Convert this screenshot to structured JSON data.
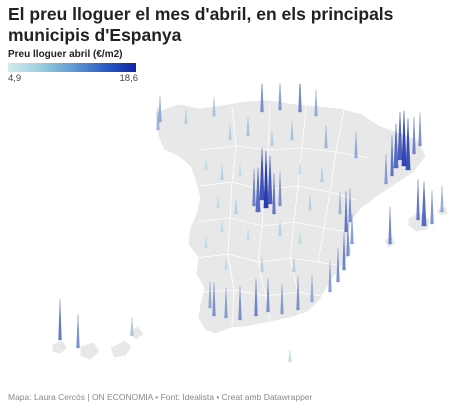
{
  "title": "El preu lloguer el mes d'abril, en els principals municipis d'Espanya",
  "legend": {
    "title": "Preu lloguer abril (€/m2)",
    "min_label": "4,9",
    "max_label": "18,6",
    "min": 4.9,
    "max": 18.6
  },
  "colors": {
    "land": "#e8e8e8",
    "border": "#ffffff",
    "spike_low": "#c9ebec",
    "spike_high": "#0b1fa6"
  },
  "footer": "Mapa: Laura Cercós | ON ECONOMIA • Font: Idealista • Creat amb Datawrapper"
}
